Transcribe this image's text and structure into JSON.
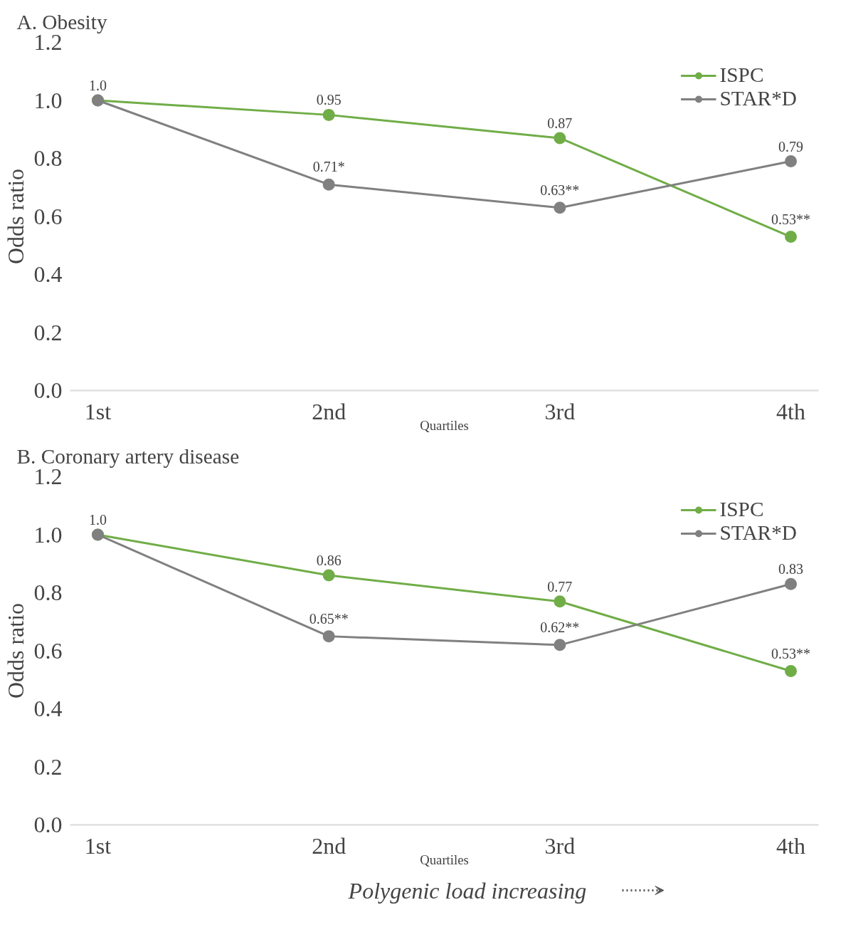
{
  "chart_data": [
    {
      "type": "line",
      "title": "A. Obesity",
      "xlabel": "Quartiles",
      "ylabel": "Odds ratio",
      "categories": [
        "1st",
        "2nd",
        "3rd",
        "4th"
      ],
      "series": [
        {
          "name": "ISPC",
          "color": "#70ad47",
          "values": [
            1.0,
            0.95,
            0.87,
            0.53
          ],
          "value_labels": [
            "1.0",
            "0.95",
            "0.87",
            "0.53**"
          ]
        },
        {
          "name": "STAR*D",
          "color": "#808080",
          "values": [
            1.0,
            0.71,
            0.63,
            0.79
          ],
          "value_labels": [
            null,
            "0.71*",
            "0.63**",
            "0.79"
          ]
        }
      ],
      "ylim": [
        0,
        1.2
      ],
      "yticks": [
        {
          "value": 0,
          "label": "0.0"
        },
        {
          "value": 0.2,
          "label": "0.2"
        },
        {
          "value": 0.4,
          "label": "0.4"
        },
        {
          "value": 0.6,
          "label": "0.6"
        },
        {
          "value": 0.8,
          "label": "0.8"
        },
        {
          "value": 1.0,
          "label": "1.0"
        },
        {
          "value": 1.2,
          "label": "1.2"
        }
      ],
      "legend": "top right",
      "marker": "circle",
      "grid": false
    },
    {
      "type": "line",
      "title": "B. Coronary artery disease",
      "xlabel": "Quartiles",
      "ylabel": "Odds ratio",
      "categories": [
        "1st",
        "2nd",
        "3rd",
        "4th"
      ],
      "series": [
        {
          "name": "ISPC",
          "color": "#70ad47",
          "values": [
            1.0,
            0.86,
            0.77,
            0.53
          ],
          "value_labels": [
            "1.0",
            "0.86",
            "0.77",
            "0.53**"
          ]
        },
        {
          "name": "STAR*D",
          "color": "#808080",
          "values": [
            1.0,
            0.65,
            0.62,
            0.83
          ],
          "value_labels": [
            null,
            "0.65**",
            "0.62**",
            "0.83"
          ]
        }
      ],
      "ylim": [
        0,
        1.2
      ],
      "yticks": [
        {
          "value": 0,
          "label": "0.0"
        },
        {
          "value": 0.2,
          "label": "0.2"
        },
        {
          "value": 0.4,
          "label": "0.4"
        },
        {
          "value": 0.6,
          "label": "0.6"
        },
        {
          "value": 0.8,
          "label": "0.8"
        },
        {
          "value": 1.0,
          "label": "1.0"
        },
        {
          "value": 1.2,
          "label": "1.2"
        }
      ],
      "legend": "top right",
      "marker": "circle",
      "grid": false,
      "annotations": [
        "Polygenic load increasing"
      ]
    }
  ]
}
